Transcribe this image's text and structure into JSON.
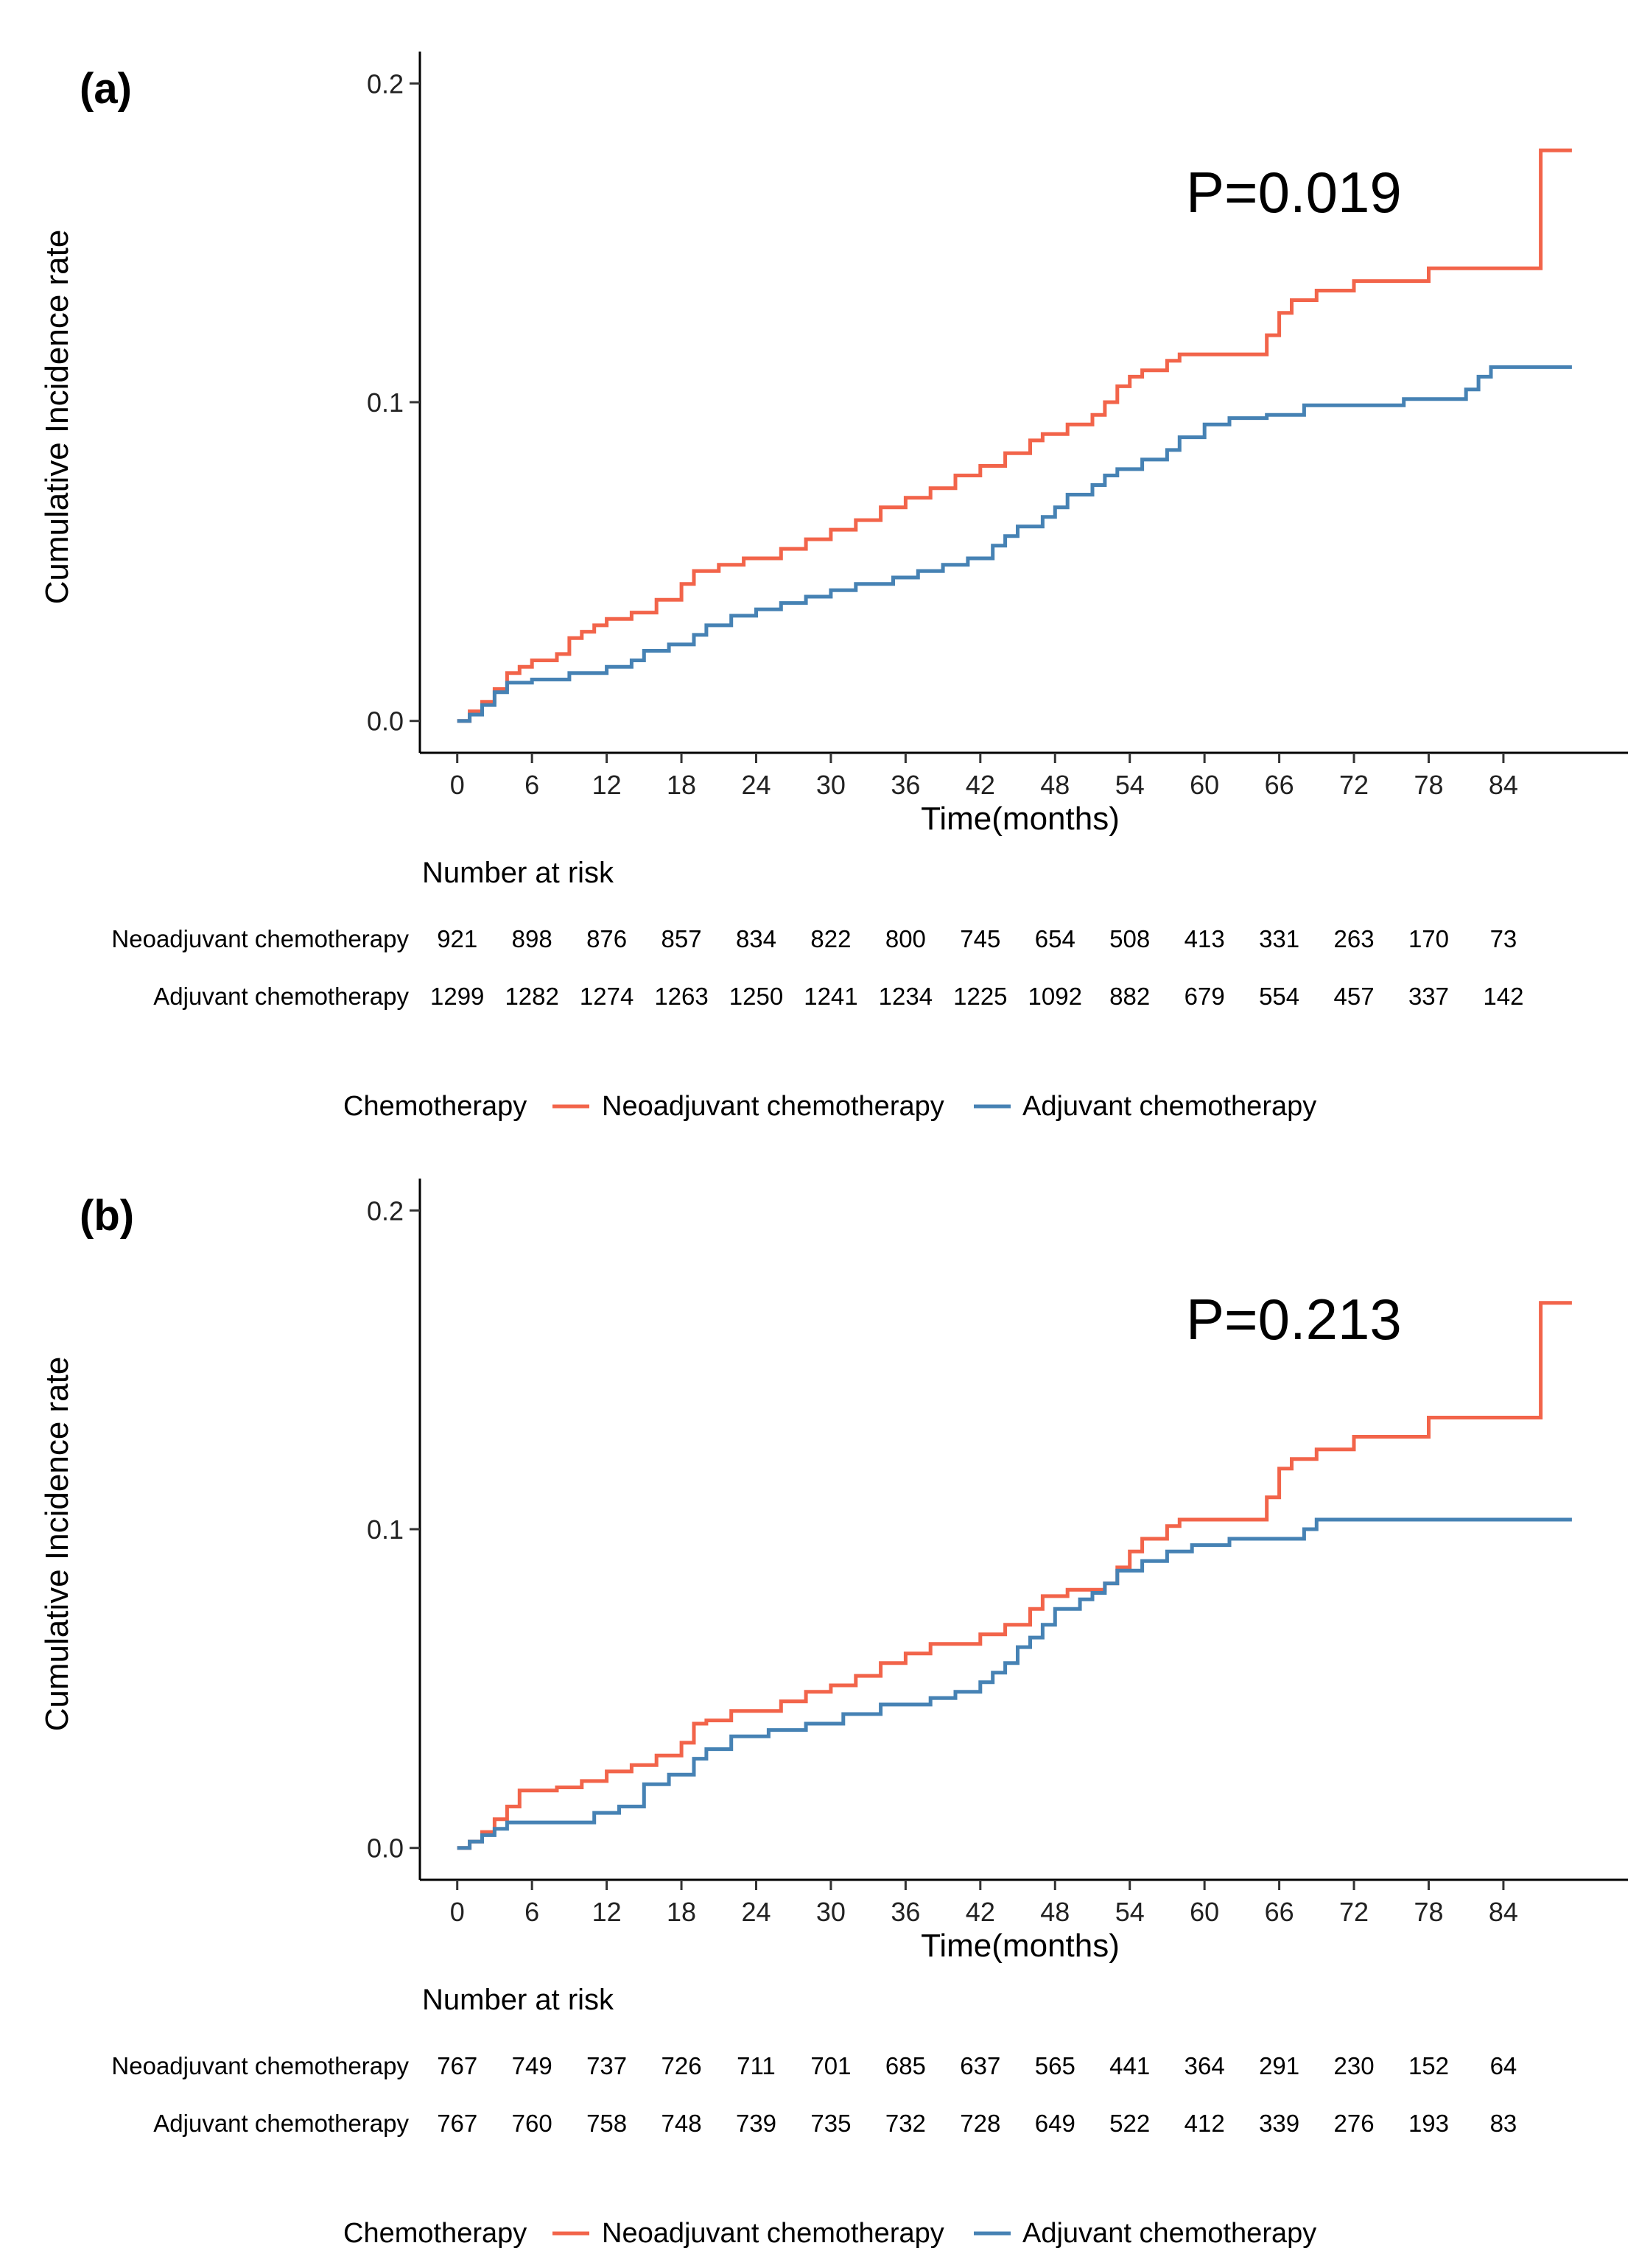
{
  "colors": {
    "neo": "#F2644A",
    "adj": "#4682B4",
    "axis": "#000000"
  },
  "chart_data": [
    {
      "type": "line",
      "panel_label": "(a)",
      "title": "",
      "xlabel": "Time(months)",
      "ylabel": "Cumulative Incidence rate",
      "p_value": "P=0.019",
      "xlim": [
        -3,
        94
      ],
      "ylim": [
        -0.01,
        0.21
      ],
      "xticks": [
        0,
        6,
        12,
        18,
        24,
        30,
        36,
        42,
        48,
        54,
        60,
        66,
        72,
        78,
        84
      ],
      "yticks": [
        0.0,
        0.1,
        0.2
      ],
      "ytick_labels": [
        "0.0",
        "0.1",
        "0.2"
      ],
      "legend_title": "Chemotherapy",
      "series": [
        {
          "name": "Neoadjuvant chemotherapy",
          "color_key": "neo",
          "steps": [
            [
              0,
              0
            ],
            [
              1,
              0.003
            ],
            [
              2,
              0.006
            ],
            [
              3,
              0.01
            ],
            [
              4,
              0.015
            ],
            [
              5,
              0.017
            ],
            [
              6,
              0.019
            ],
            [
              8,
              0.021
            ],
            [
              9,
              0.026
            ],
            [
              10,
              0.028
            ],
            [
              11,
              0.03
            ],
            [
              12,
              0.032
            ],
            [
              14,
              0.034
            ],
            [
              16,
              0.038
            ],
            [
              18,
              0.043
            ],
            [
              19,
              0.047
            ],
            [
              21,
              0.049
            ],
            [
              23,
              0.051
            ],
            [
              26,
              0.054
            ],
            [
              28,
              0.057
            ],
            [
              30,
              0.06
            ],
            [
              32,
              0.063
            ],
            [
              34,
              0.067
            ],
            [
              36,
              0.07
            ],
            [
              38,
              0.073
            ],
            [
              40,
              0.077
            ],
            [
              42,
              0.08
            ],
            [
              44,
              0.084
            ],
            [
              46,
              0.088
            ],
            [
              47,
              0.09
            ],
            [
              49,
              0.093
            ],
            [
              51,
              0.096
            ],
            [
              52,
              0.1
            ],
            [
              53,
              0.105
            ],
            [
              54,
              0.108
            ],
            [
              55,
              0.11
            ],
            [
              57,
              0.113
            ],
            [
              58,
              0.115
            ],
            [
              65,
              0.121
            ],
            [
              66,
              0.128
            ],
            [
              67,
              0.132
            ],
            [
              69,
              0.135
            ],
            [
              72,
              0.138
            ],
            [
              78,
              0.142
            ],
            [
              87,
              0.179
            ],
            [
              89.5,
              0.179
            ]
          ]
        },
        {
          "name": "Adjuvant chemotherapy",
          "color_key": "adj",
          "steps": [
            [
              0,
              0
            ],
            [
              1,
              0.002
            ],
            [
              2,
              0.005
            ],
            [
              3,
              0.009
            ],
            [
              4,
              0.012
            ],
            [
              6,
              0.013
            ],
            [
              9,
              0.015
            ],
            [
              12,
              0.017
            ],
            [
              14,
              0.019
            ],
            [
              15,
              0.022
            ],
            [
              17,
              0.024
            ],
            [
              19,
              0.027
            ],
            [
              20,
              0.03
            ],
            [
              22,
              0.033
            ],
            [
              24,
              0.035
            ],
            [
              26,
              0.037
            ],
            [
              28,
              0.039
            ],
            [
              30,
              0.041
            ],
            [
              32,
              0.043
            ],
            [
              35,
              0.045
            ],
            [
              37,
              0.047
            ],
            [
              39,
              0.049
            ],
            [
              41,
              0.051
            ],
            [
              43,
              0.055
            ],
            [
              44,
              0.058
            ],
            [
              45,
              0.061
            ],
            [
              47,
              0.064
            ],
            [
              48,
              0.067
            ],
            [
              49,
              0.071
            ],
            [
              51,
              0.074
            ],
            [
              52,
              0.077
            ],
            [
              53,
              0.079
            ],
            [
              55,
              0.082
            ],
            [
              57,
              0.085
            ],
            [
              58,
              0.089
            ],
            [
              60,
              0.093
            ],
            [
              62,
              0.095
            ],
            [
              65,
              0.096
            ],
            [
              68,
              0.099
            ],
            [
              76,
              0.101
            ],
            [
              81,
              0.104
            ],
            [
              82,
              0.108
            ],
            [
              83,
              0.111
            ],
            [
              89.5,
              0.111
            ]
          ]
        }
      ],
      "risk_table": {
        "title": "Number at risk",
        "rows": [
          {
            "name": "Neoadjuvant chemotherapy",
            "values": [
              "921",
              "898",
              "876",
              "857",
              "834",
              "822",
              "800",
              "745",
              "654",
              "508",
              "413",
              "331",
              "263",
              "170",
              "73"
            ]
          },
          {
            "name": "Adjuvant chemotherapy",
            "values": [
              "1299",
              "1282",
              "1274",
              "1263",
              "1250",
              "1241",
              "1234",
              "1225",
              "1092",
              "882",
              "679",
              "554",
              "457",
              "337",
              "142"
            ]
          }
        ]
      }
    },
    {
      "type": "line",
      "panel_label": "(b)",
      "title": "",
      "xlabel": "Time(months)",
      "ylabel": "Cumulative Incidence rate",
      "p_value": "P=0.213",
      "xlim": [
        -3,
        94
      ],
      "ylim": [
        -0.01,
        0.21
      ],
      "xticks": [
        0,
        6,
        12,
        18,
        24,
        30,
        36,
        42,
        48,
        54,
        60,
        66,
        72,
        78,
        84
      ],
      "yticks": [
        0.0,
        0.1,
        0.2
      ],
      "ytick_labels": [
        "0.0",
        "0.1",
        "0.2"
      ],
      "legend_title": "Chemotherapy",
      "series": [
        {
          "name": "Neoadjuvant chemotherapy",
          "color_key": "neo",
          "steps": [
            [
              0,
              0
            ],
            [
              1,
              0.002
            ],
            [
              2,
              0.005
            ],
            [
              3,
              0.009
            ],
            [
              4,
              0.013
            ],
            [
              5,
              0.018
            ],
            [
              8,
              0.019
            ],
            [
              10,
              0.021
            ],
            [
              12,
              0.024
            ],
            [
              14,
              0.026
            ],
            [
              16,
              0.029
            ],
            [
              18,
              0.033
            ],
            [
              19,
              0.039
            ],
            [
              20,
              0.04
            ],
            [
              22,
              0.043
            ],
            [
              26,
              0.046
            ],
            [
              28,
              0.049
            ],
            [
              30,
              0.051
            ],
            [
              32,
              0.054
            ],
            [
              34,
              0.058
            ],
            [
              36,
              0.061
            ],
            [
              38,
              0.064
            ],
            [
              42,
              0.067
            ],
            [
              44,
              0.07
            ],
            [
              46,
              0.075
            ],
            [
              47,
              0.079
            ],
            [
              49,
              0.081
            ],
            [
              52,
              0.083
            ],
            [
              53,
              0.088
            ],
            [
              54,
              0.093
            ],
            [
              55,
              0.097
            ],
            [
              57,
              0.101
            ],
            [
              58,
              0.103
            ],
            [
              65,
              0.11
            ],
            [
              66,
              0.119
            ],
            [
              67,
              0.122
            ],
            [
              69,
              0.125
            ],
            [
              72,
              0.129
            ],
            [
              78,
              0.135
            ],
            [
              87,
              0.171
            ],
            [
              89.5,
              0.171
            ]
          ]
        },
        {
          "name": "Adjuvant chemotherapy",
          "color_key": "adj",
          "steps": [
            [
              0,
              0
            ],
            [
              1,
              0.002
            ],
            [
              2,
              0.004
            ],
            [
              3,
              0.006
            ],
            [
              4,
              0.008
            ],
            [
              11,
              0.011
            ],
            [
              13,
              0.013
            ],
            [
              15,
              0.02
            ],
            [
              17,
              0.023
            ],
            [
              19,
              0.028
            ],
            [
              20,
              0.031
            ],
            [
              22,
              0.035
            ],
            [
              25,
              0.037
            ],
            [
              28,
              0.039
            ],
            [
              31,
              0.042
            ],
            [
              34,
              0.045
            ],
            [
              38,
              0.047
            ],
            [
              40,
              0.049
            ],
            [
              42,
              0.052
            ],
            [
              43,
              0.055
            ],
            [
              44,
              0.058
            ],
            [
              45,
              0.063
            ],
            [
              46,
              0.066
            ],
            [
              47,
              0.07
            ],
            [
              48,
              0.075
            ],
            [
              50,
              0.078
            ],
            [
              51,
              0.08
            ],
            [
              52,
              0.083
            ],
            [
              53,
              0.087
            ],
            [
              55,
              0.09
            ],
            [
              57,
              0.093
            ],
            [
              59,
              0.095
            ],
            [
              62,
              0.097
            ],
            [
              68,
              0.1
            ],
            [
              69,
              0.103
            ],
            [
              89.5,
              0.103
            ]
          ]
        }
      ],
      "risk_table": {
        "title": "Number at risk",
        "rows": [
          {
            "name": "Neoadjuvant chemotherapy",
            "values": [
              "767",
              "749",
              "737",
              "726",
              "711",
              "701",
              "685",
              "637",
              "565",
              "441",
              "364",
              "291",
              "230",
              "152",
              "64"
            ]
          },
          {
            "name": "Adjuvant chemotherapy",
            "values": [
              "767",
              "760",
              "758",
              "748",
              "739",
              "735",
              "732",
              "728",
              "649",
              "522",
              "412",
              "339",
              "276",
              "193",
              "83"
            ]
          }
        ]
      }
    }
  ]
}
